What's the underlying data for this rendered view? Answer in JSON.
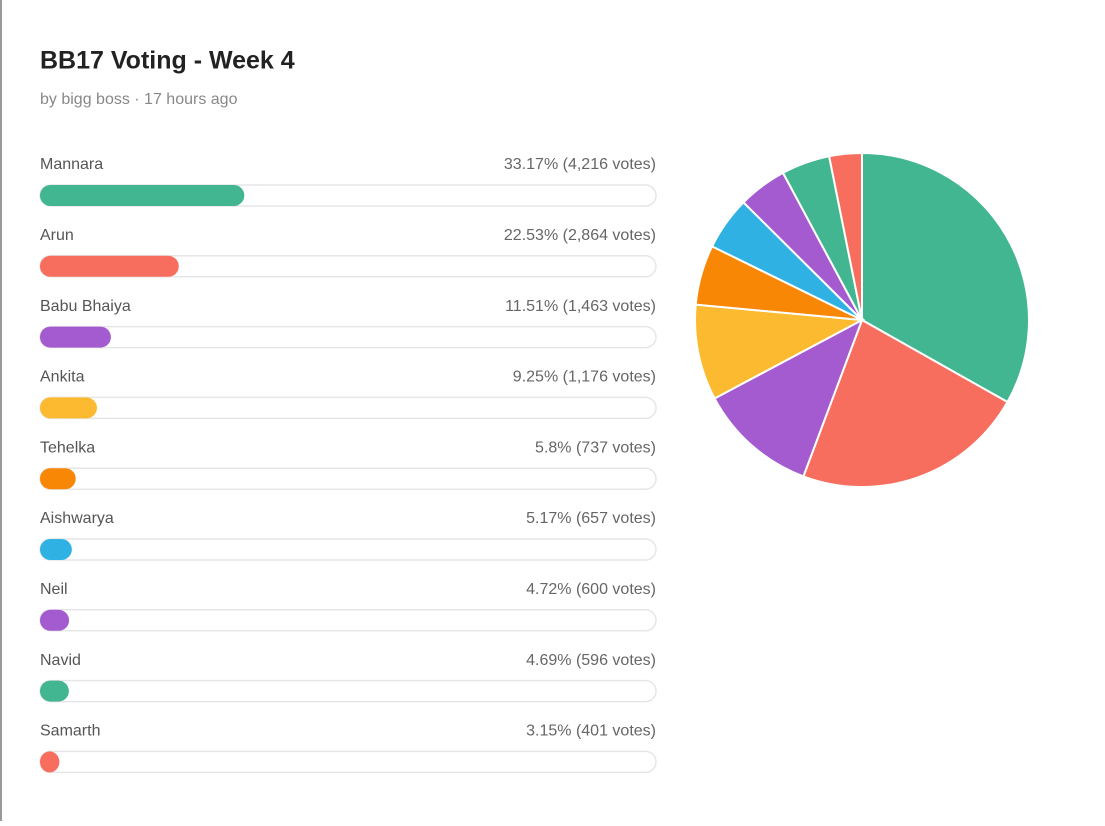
{
  "header": {
    "title": "BB17 Voting - Week 4",
    "byline": "by bigg boss · 17 hours ago"
  },
  "poll": {
    "options": [
      {
        "name": "Mannara",
        "label": "33.17% (4,216 votes)",
        "percent": 33.17,
        "color": "#41b690"
      },
      {
        "name": "Arun",
        "label": "22.53% (2,864 votes)",
        "percent": 22.53,
        "color": "#f76e5f"
      },
      {
        "name": "Babu Bhaiya",
        "label": "11.51% (1,463 votes)",
        "percent": 11.51,
        "color": "#a35bcf"
      },
      {
        "name": "Ankita",
        "label": "9.25% (1,176 votes)",
        "percent": 9.25,
        "color": "#fcba30"
      },
      {
        "name": "Tehelka",
        "label": "5.8% (737 votes)",
        "percent": 5.8,
        "color": "#f88706"
      },
      {
        "name": "Aishwarya",
        "label": "5.17% (657 votes)",
        "percent": 5.17,
        "color": "#30b1e4"
      },
      {
        "name": "Neil",
        "label": "4.72% (600 votes)",
        "percent": 4.72,
        "color": "#a35bcf"
      },
      {
        "name": "Navid",
        "label": "4.69% (596 votes)",
        "percent": 4.69,
        "color": "#41b690"
      },
      {
        "name": "Samarth",
        "label": "3.15% (401 votes)",
        "percent": 3.15,
        "color": "#f76e5f"
      }
    ]
  }
}
